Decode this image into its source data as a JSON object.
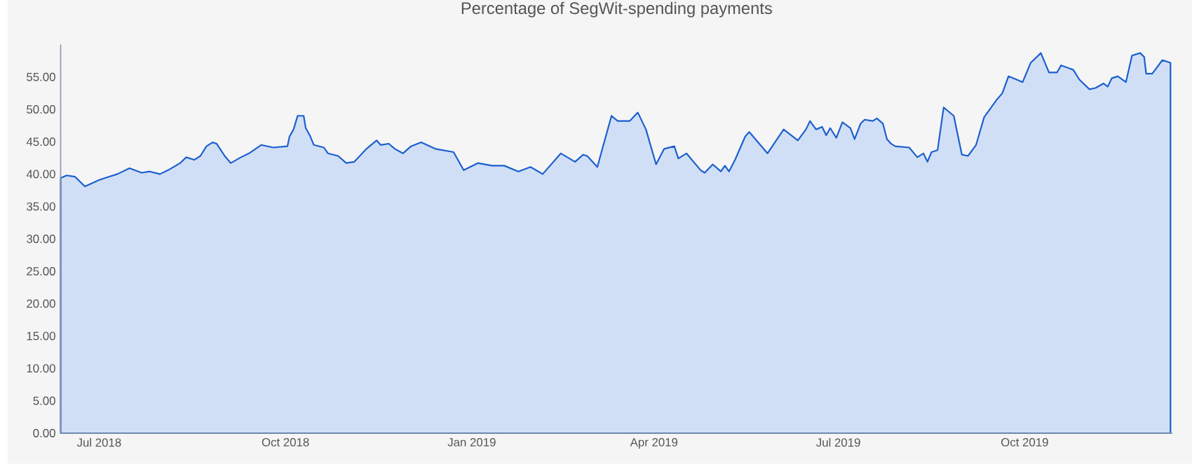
{
  "chart_data": {
    "type": "area",
    "title": "Percentage of SegWit-spending payments",
    "color": "#1a5fd0",
    "x": [
      "2018-06-12",
      "2018-06-15",
      "2018-06-19",
      "2018-06-24",
      "2018-07-01",
      "2018-07-06",
      "2018-07-10",
      "2018-07-16",
      "2018-07-22",
      "2018-07-26",
      "2018-07-31",
      "2018-08-04",
      "2018-08-10",
      "2018-08-13",
      "2018-08-17",
      "2018-08-20",
      "2018-08-23",
      "2018-08-26",
      "2018-08-28",
      "2018-09-01",
      "2018-09-04",
      "2018-09-09",
      "2018-09-13",
      "2018-09-19",
      "2018-09-25",
      "2018-10-02",
      "2018-10-03",
      "2018-10-05",
      "2018-10-07",
      "2018-10-10",
      "2018-10-11",
      "2018-10-13",
      "2018-10-15",
      "2018-10-20",
      "2018-10-22",
      "2018-10-27",
      "2018-10-31",
      "2018-11-04",
      "2018-11-10",
      "2018-11-15",
      "2018-11-17",
      "2018-11-21",
      "2018-11-24",
      "2018-11-28",
      "2018-12-02",
      "2018-12-07",
      "2018-12-14",
      "2018-12-23",
      "2018-12-28",
      "2019-01-04",
      "2019-01-11",
      "2019-01-17",
      "2019-01-24",
      "2019-01-30",
      "2019-02-05",
      "2019-02-14",
      "2019-02-21",
      "2019-02-25",
      "2019-02-27",
      "2019-03-04",
      "2019-03-07",
      "2019-03-11",
      "2019-03-14",
      "2019-03-20",
      "2019-03-24",
      "2019-03-28",
      "2019-04-02",
      "2019-04-06",
      "2019-04-11",
      "2019-04-13",
      "2019-04-17",
      "2019-04-24",
      "2019-04-26",
      "2019-04-30",
      "2019-05-04",
      "2019-05-06",
      "2019-05-08",
      "2019-05-11",
      "2019-05-16",
      "2019-05-18",
      "2019-05-27",
      "2019-06-04",
      "2019-06-11",
      "2019-06-15",
      "2019-06-17",
      "2019-06-20",
      "2019-06-23",
      "2019-06-25",
      "2019-06-27",
      "2019-06-30",
      "2019-07-03",
      "2019-07-07",
      "2019-07-09",
      "2019-07-12",
      "2019-07-14",
      "2019-07-18",
      "2019-07-20",
      "2019-07-23",
      "2019-07-25",
      "2019-07-27",
      "2019-07-29",
      "2019-08-05",
      "2019-08-09",
      "2019-08-12",
      "2019-08-14",
      "2019-08-16",
      "2019-08-19",
      "2019-08-22",
      "2019-08-27",
      "2019-08-31",
      "2019-09-03",
      "2019-09-07",
      "2019-09-11",
      "2019-09-17",
      "2019-09-20",
      "2019-09-23",
      "2019-09-27",
      "2019-09-30",
      "2019-10-04",
      "2019-10-09",
      "2019-10-13",
      "2019-10-17",
      "2019-10-19",
      "2019-10-25",
      "2019-10-28",
      "2019-11-02",
      "2019-11-05",
      "2019-11-09",
      "2019-11-11",
      "2019-11-13",
      "2019-11-16",
      "2019-11-20",
      "2019-11-23",
      "2019-11-27",
      "2019-11-29",
      "2019-11-30",
      "2019-12-03",
      "2019-12-08",
      "2019-12-12"
    ],
    "values": [
      39.4,
      39.8,
      39.6,
      38.1,
      39.1,
      39.6,
      40.0,
      40.9,
      40.2,
      40.4,
      40.0,
      40.6,
      41.7,
      42.6,
      42.2,
      42.8,
      44.3,
      44.9,
      44.7,
      42.8,
      41.7,
      42.6,
      43.2,
      44.5,
      44.1,
      44.3,
      45.8,
      46.9,
      49.0,
      49.0,
      47.1,
      46.0,
      44.5,
      44.1,
      43.2,
      42.8,
      41.7,
      41.9,
      43.9,
      45.2,
      44.5,
      44.7,
      43.9,
      43.2,
      44.3,
      44.9,
      43.9,
      43.4,
      40.6,
      41.7,
      41.3,
      41.3,
      40.4,
      41.1,
      40.0,
      43.2,
      41.9,
      43.0,
      42.8,
      41.1,
      44.5,
      49.0,
      48.2,
      48.2,
      49.5,
      46.9,
      41.5,
      43.9,
      44.3,
      42.4,
      43.2,
      40.6,
      40.2,
      41.5,
      40.4,
      41.3,
      40.4,
      42.2,
      45.8,
      46.5,
      43.2,
      46.9,
      45.2,
      46.9,
      48.2,
      46.9,
      47.3,
      46.0,
      47.1,
      45.6,
      48.0,
      47.1,
      45.4,
      47.8,
      48.4,
      48.2,
      48.6,
      47.8,
      45.4,
      44.7,
      44.3,
      44.1,
      42.6,
      43.2,
      41.9,
      43.4,
      43.7,
      50.3,
      49.0,
      43.0,
      42.8,
      44.5,
      48.8,
      51.4,
      52.5,
      55.1,
      54.6,
      54.2,
      57.2,
      58.7,
      55.7,
      55.7,
      56.8,
      56.1,
      54.6,
      53.1,
      53.3,
      54.0,
      53.5,
      54.8,
      55.1,
      54.2,
      58.3,
      58.7,
      58.1,
      55.5,
      55.5,
      57.6,
      57.2
    ],
    "xlim": [
      "2018-06-12",
      "2019-12-13"
    ],
    "xticks": [
      {
        "value": "2018-07-01",
        "label": "Jul 2018"
      },
      {
        "value": "2018-10-01",
        "label": "Oct 2018"
      },
      {
        "value": "2019-01-01",
        "label": "Jan 2019"
      },
      {
        "value": "2019-04-01",
        "label": "Apr 2019"
      },
      {
        "value": "2019-07-01",
        "label": "Jul 2019"
      },
      {
        "value": "2019-10-01",
        "label": "Oct 2019"
      }
    ],
    "ylim": [
      0,
      60
    ],
    "yticks": [
      {
        "value": 0,
        "label": "0.00"
      },
      {
        "value": 5,
        "label": "5.00"
      },
      {
        "value": 10,
        "label": "10.00"
      },
      {
        "value": 15,
        "label": "15.00"
      },
      {
        "value": 20,
        "label": "20.00"
      },
      {
        "value": 25,
        "label": "25.00"
      },
      {
        "value": 30,
        "label": "30.00"
      },
      {
        "value": 35,
        "label": "35.00"
      },
      {
        "value": 40,
        "label": "40.00"
      },
      {
        "value": 45,
        "label": "45.00"
      },
      {
        "value": 50,
        "label": "50.00"
      },
      {
        "value": 55,
        "label": "55.00"
      }
    ]
  }
}
